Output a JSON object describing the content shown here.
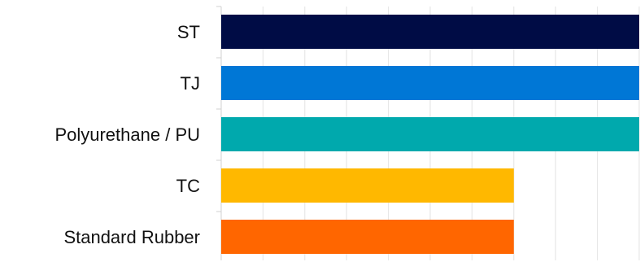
{
  "chart_data": {
    "type": "bar",
    "orientation": "horizontal",
    "categories": [
      "ST",
      "TJ",
      "Polyurethane / PU",
      "TC",
      "Standard Rubber"
    ],
    "values": [
      100,
      100,
      100,
      70,
      70
    ],
    "colors": [
      "#000c45",
      "#0077d6",
      "#00a9ad",
      "#ffb800",
      "#ff6600"
    ],
    "xlim": [
      0,
      100
    ],
    "grid": true,
    "gridlines": 10,
    "tick_labels_shown": false,
    "legend": "none",
    "title": "",
    "xlabel": "",
    "ylabel": ""
  }
}
